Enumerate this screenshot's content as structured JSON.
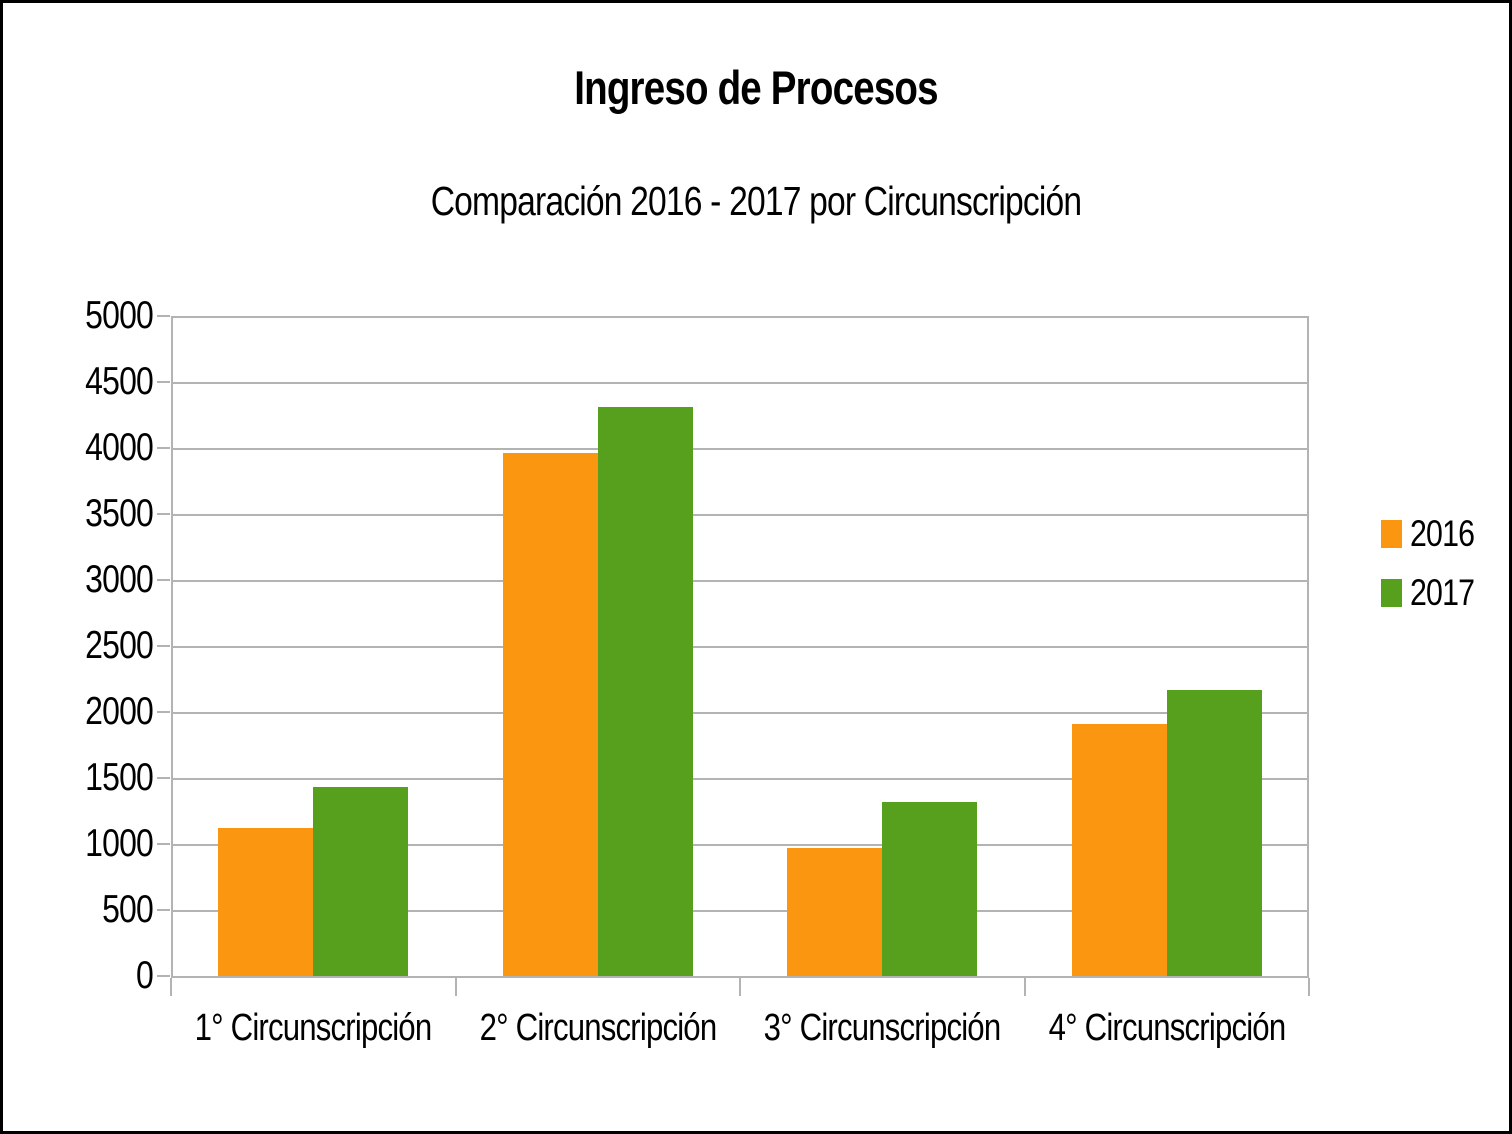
{
  "chart_data": {
    "type": "bar",
    "title": "Ingreso de Procesos",
    "subtitle": "Comparación 2016 - 2017 por Circunscripción",
    "categories": [
      "1° Circunscripción",
      "2° Circunscripción",
      "3° Circunscripción",
      "4° Circunscripción"
    ],
    "series": [
      {
        "name": "2016",
        "color": "#FB9611",
        "values": [
          1120,
          3960,
          970,
          1910
        ]
      },
      {
        "name": "2017",
        "color": "#57A01E",
        "values": [
          1430,
          4310,
          1320,
          2170
        ]
      }
    ],
    "xlabel": "",
    "ylabel": "",
    "ylim": [
      0,
      5000
    ],
    "ytick_step": 500,
    "grid": "horizontal",
    "legend_position": "right",
    "colors": {
      "grid": "#b3b3b3",
      "axis": "#b3b3b3",
      "text": "#000000",
      "frame": "#000000",
      "background": "#ffffff"
    }
  }
}
